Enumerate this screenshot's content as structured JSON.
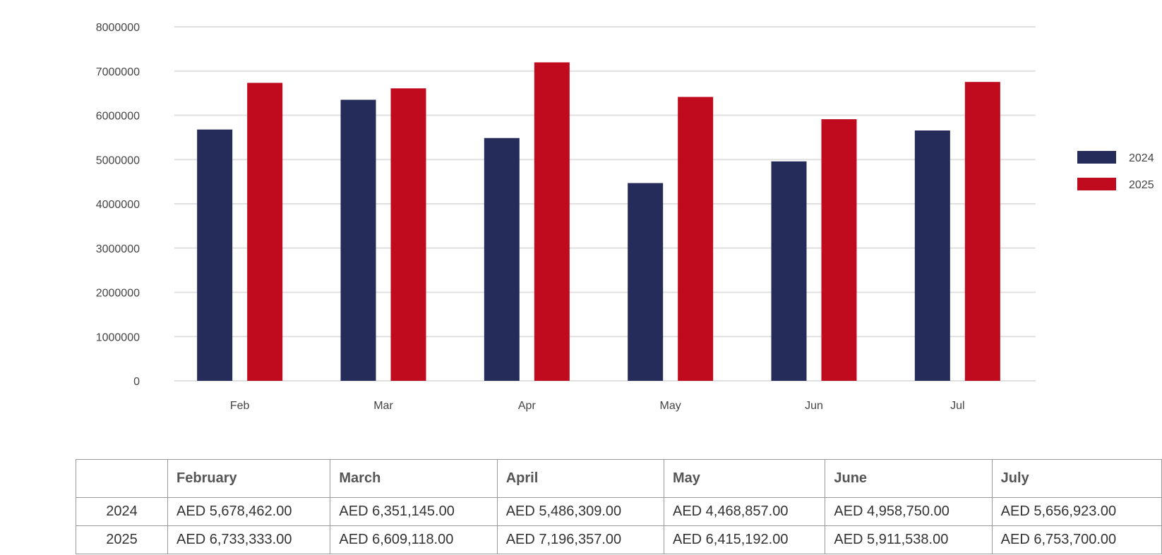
{
  "chart_data": {
    "type": "bar",
    "categories": [
      "Feb",
      "Mar",
      "Apr",
      "May",
      "Jun",
      "Jul"
    ],
    "series": [
      {
        "name": "2024",
        "values": [
          5678462,
          6351145,
          5486309,
          4468857,
          4958750,
          5656923
        ]
      },
      {
        "name": "2025",
        "values": [
          6733333,
          6609118,
          7196357,
          6415192,
          5911538,
          6753700
        ]
      }
    ],
    "yticks": [
      "0",
      "1000000",
      "2000000",
      "3000000",
      "4000000",
      "5000000",
      "6000000",
      "7000000",
      "8000000"
    ],
    "ylim": [
      0,
      8000000
    ],
    "grid": true,
    "legend": "right",
    "colors": {
      "2024": "#252c5a",
      "2025": "#c00a1e"
    }
  },
  "table": {
    "headers": [
      "",
      "February",
      "March",
      "April",
      "May",
      "June",
      "July"
    ],
    "rows": [
      {
        "year": "2024",
        "cells": [
          "AED 5,678,462.00",
          "AED 6,351,145.00",
          "AED 5,486,309.00",
          "AED 4,468,857.00",
          "AED 4,958,750.00",
          "AED 5,656,923.00"
        ]
      },
      {
        "year": "2025",
        "cells": [
          "AED 6,733,333.00",
          "AED 6,609,118.00",
          "AED 7,196,357.00",
          "AED 6,415,192.00",
          "AED 5,911,538.00",
          "AED 6,753,700.00"
        ]
      }
    ]
  }
}
